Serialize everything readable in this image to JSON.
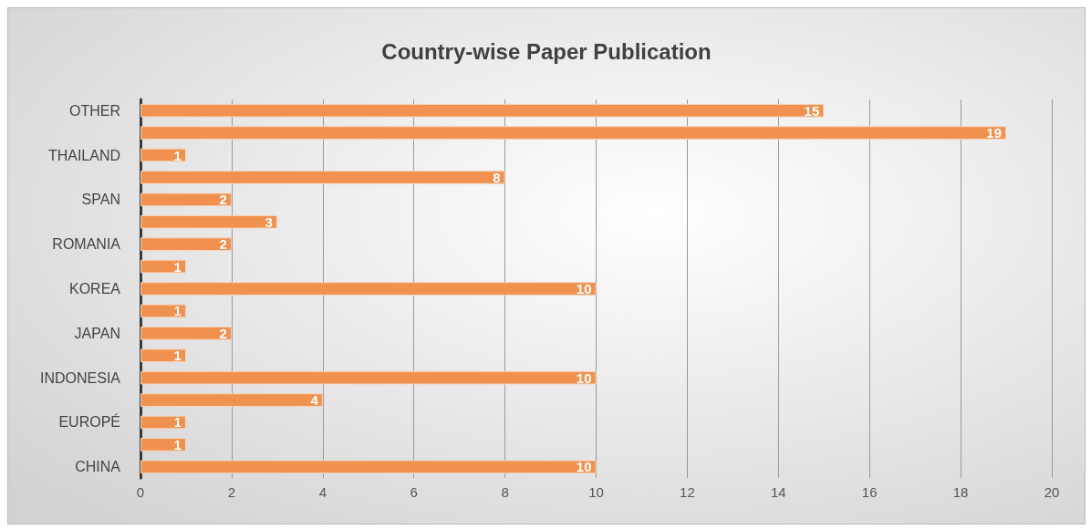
{
  "chart_data": {
    "type": "bar",
    "orientation": "horizontal",
    "title": "Country-wise Paper Publication",
    "categories": [
      "OTHER",
      null,
      "THAILAND",
      null,
      "SPAN",
      null,
      "ROMANIA",
      null,
      "KOREA",
      null,
      "JAPAN",
      null,
      "INDONESIA",
      null,
      "EUROPÉ",
      null,
      "CHINA"
    ],
    "values": [
      15,
      19,
      1,
      8,
      2,
      3,
      2,
      1,
      10,
      1,
      2,
      1,
      10,
      4,
      1,
      1,
      10
    ],
    "color": "#f0914f",
    "xlim": [
      0,
      20
    ],
    "xticks": [
      0,
      2,
      4,
      6,
      8,
      10,
      12,
      14,
      16,
      18,
      20
    ],
    "grid": "x",
    "data_labels": true
  }
}
